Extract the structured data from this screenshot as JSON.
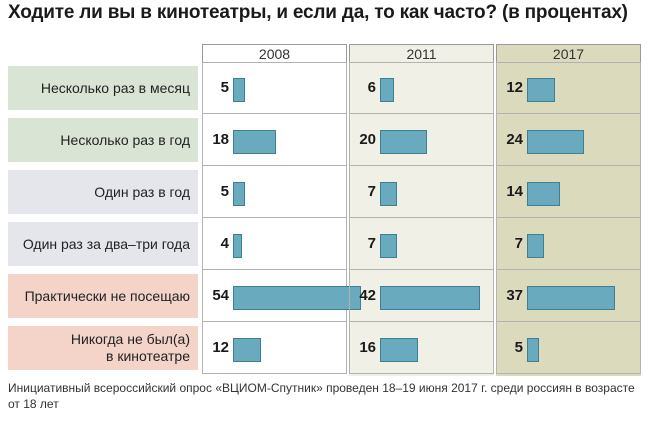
{
  "title": "Ходите ли вы в кинотеатры, и если да, то как часто? (в процентах)",
  "note": "Инициативный всероссийский опрос «ВЦИОМ-Спутник» проведен 18–19 июня 2017 г. среди россиян в возрасте от 18 лет",
  "colors": {
    "bar": "#6aaabe",
    "green_row": "#d9e4d4",
    "grey_row": "#e4e6ec",
    "pink_row": "#f4d3c8"
  },
  "chart_data": {
    "type": "bar",
    "title": "Ходите ли вы в кинотеатры, и если да, то как часто? (в процентах)",
    "xlabel": "",
    "ylabel": "",
    "categories": [
      "Несколько раз в месяц",
      "Несколько раз в год",
      "Один раз в год",
      "Один раз за два–три года",
      "Практически не посещаю",
      "Никогда не был(а) в кинотеатре"
    ],
    "row_colors": [
      "#d9e4d4",
      "#d9e4d4",
      "#e4e6ec",
      "#e4e6ec",
      "#f4d3c8",
      "#f4d3c8"
    ],
    "series": [
      {
        "name": "2008",
        "values": [
          5,
          18,
          5,
          4,
          54,
          12
        ]
      },
      {
        "name": "2011",
        "values": [
          6,
          20,
          7,
          7,
          42,
          16
        ]
      },
      {
        "name": "2017",
        "values": [
          12,
          24,
          14,
          7,
          37,
          5
        ]
      }
    ],
    "xlim": [
      0,
      54
    ]
  }
}
